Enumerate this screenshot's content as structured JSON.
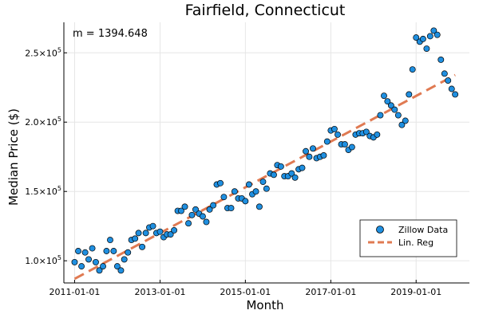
{
  "chart_data": {
    "type": "scatter",
    "title": "Fairfield, Connecticut",
    "xlabel": "Month",
    "ylabel": "Median Price ($)",
    "annotation": "m = 1394.648",
    "grid": true,
    "legend_position": "bottom-right",
    "xlim": [
      "2010-10-01",
      "2020-04-01"
    ],
    "ylim": [
      84000,
      272000
    ],
    "x_ticks": [
      "2011-01-01",
      "2013-01-01",
      "2015-01-01",
      "2017-01-01",
      "2019-01-01"
    ],
    "y_ticks": [
      {
        "value": 100000,
        "mantissa": "1.0",
        "exp": "5"
      },
      {
        "value": 150000,
        "mantissa": "1.5",
        "exp": "5"
      },
      {
        "value": 200000,
        "mantissa": "2.0",
        "exp": "5"
      },
      {
        "value": 250000,
        "mantissa": "2.5",
        "exp": "5"
      }
    ],
    "tick_prefix": "×10",
    "series": [
      {
        "name": "Zillow Data",
        "kind": "scatter",
        "color": "#1f8fe0",
        "x": [
          "2011-01-01",
          "2011-02-01",
          "2011-03-01",
          "2011-04-01",
          "2011-05-01",
          "2011-06-01",
          "2011-07-01",
          "2011-08-01",
          "2011-09-01",
          "2011-10-01",
          "2011-11-01",
          "2011-12-01",
          "2012-01-01",
          "2012-02-01",
          "2012-03-01",
          "2012-04-01",
          "2012-05-01",
          "2012-06-01",
          "2012-07-01",
          "2012-08-01",
          "2012-09-01",
          "2012-10-01",
          "2012-11-01",
          "2012-12-01",
          "2013-01-01",
          "2013-02-01",
          "2013-03-01",
          "2013-04-01",
          "2013-05-01",
          "2013-06-01",
          "2013-07-01",
          "2013-08-01",
          "2013-09-01",
          "2013-10-01",
          "2013-11-01",
          "2013-12-01",
          "2014-01-01",
          "2014-02-01",
          "2014-03-01",
          "2014-04-01",
          "2014-05-01",
          "2014-06-01",
          "2014-07-01",
          "2014-08-01",
          "2014-09-01",
          "2014-10-01",
          "2014-11-01",
          "2014-12-01",
          "2015-01-01",
          "2015-02-01",
          "2015-03-01",
          "2015-04-01",
          "2015-05-01",
          "2015-06-01",
          "2015-07-01",
          "2015-08-01",
          "2015-09-01",
          "2015-10-01",
          "2015-11-01",
          "2015-12-01",
          "2016-01-01",
          "2016-02-01",
          "2016-03-01",
          "2016-04-01",
          "2016-05-01",
          "2016-06-01",
          "2016-07-01",
          "2016-08-01",
          "2016-09-01",
          "2016-10-01",
          "2016-11-01",
          "2016-12-01",
          "2017-01-01",
          "2017-02-01",
          "2017-03-01",
          "2017-04-01",
          "2017-05-01",
          "2017-06-01",
          "2017-07-01",
          "2017-08-01",
          "2017-09-01",
          "2017-10-01",
          "2017-11-01",
          "2017-12-01",
          "2018-01-01",
          "2018-02-01",
          "2018-03-01",
          "2018-04-01",
          "2018-05-01",
          "2018-06-01",
          "2018-07-01",
          "2018-08-01",
          "2018-09-01",
          "2018-10-01",
          "2018-11-01",
          "2018-12-01",
          "2019-01-01",
          "2019-02-01",
          "2019-03-01",
          "2019-04-01",
          "2019-05-01",
          "2019-06-01",
          "2019-07-01",
          "2019-08-01",
          "2019-09-01",
          "2019-10-01",
          "2019-11-01",
          "2019-12-01"
        ],
        "y": [
          99000,
          107000,
          96000,
          106000,
          101000,
          109000,
          99000,
          93000,
          96000,
          107000,
          115000,
          107000,
          96000,
          93000,
          101000,
          106000,
          115000,
          116000,
          120000,
          110000,
          120000,
          124000,
          125000,
          120000,
          121000,
          117000,
          119000,
          119000,
          122000,
          136000,
          136000,
          139000,
          127000,
          133000,
          137000,
          134000,
          132000,
          128000,
          137000,
          140000,
          155000,
          156000,
          146000,
          138000,
          138000,
          150000,
          145000,
          145000,
          143000,
          155000,
          148000,
          150000,
          139000,
          157000,
          152000,
          163000,
          162000,
          169000,
          168000,
          161000,
          161000,
          163000,
          160000,
          166000,
          167000,
          179000,
          175000,
          181000,
          174000,
          175000,
          176000,
          186000,
          194000,
          195000,
          191000,
          184000,
          184000,
          180000,
          182000,
          191000,
          192000,
          192000,
          193000,
          190000,
          189000,
          191000,
          205000,
          219000,
          215000,
          212000,
          209000,
          205000,
          198000,
          201000,
          220000,
          238000,
          261000,
          258000,
          260000,
          253000,
          262000,
          266000,
          263000,
          245000,
          235000,
          230000,
          224000,
          220000
        ]
      },
      {
        "name": "Lin. Reg",
        "kind": "line",
        "color": "#e07a52",
        "x": [
          "2011-01-01",
          "2019-12-01"
        ],
        "y": [
          87000,
          234000
        ]
      }
    ]
  }
}
